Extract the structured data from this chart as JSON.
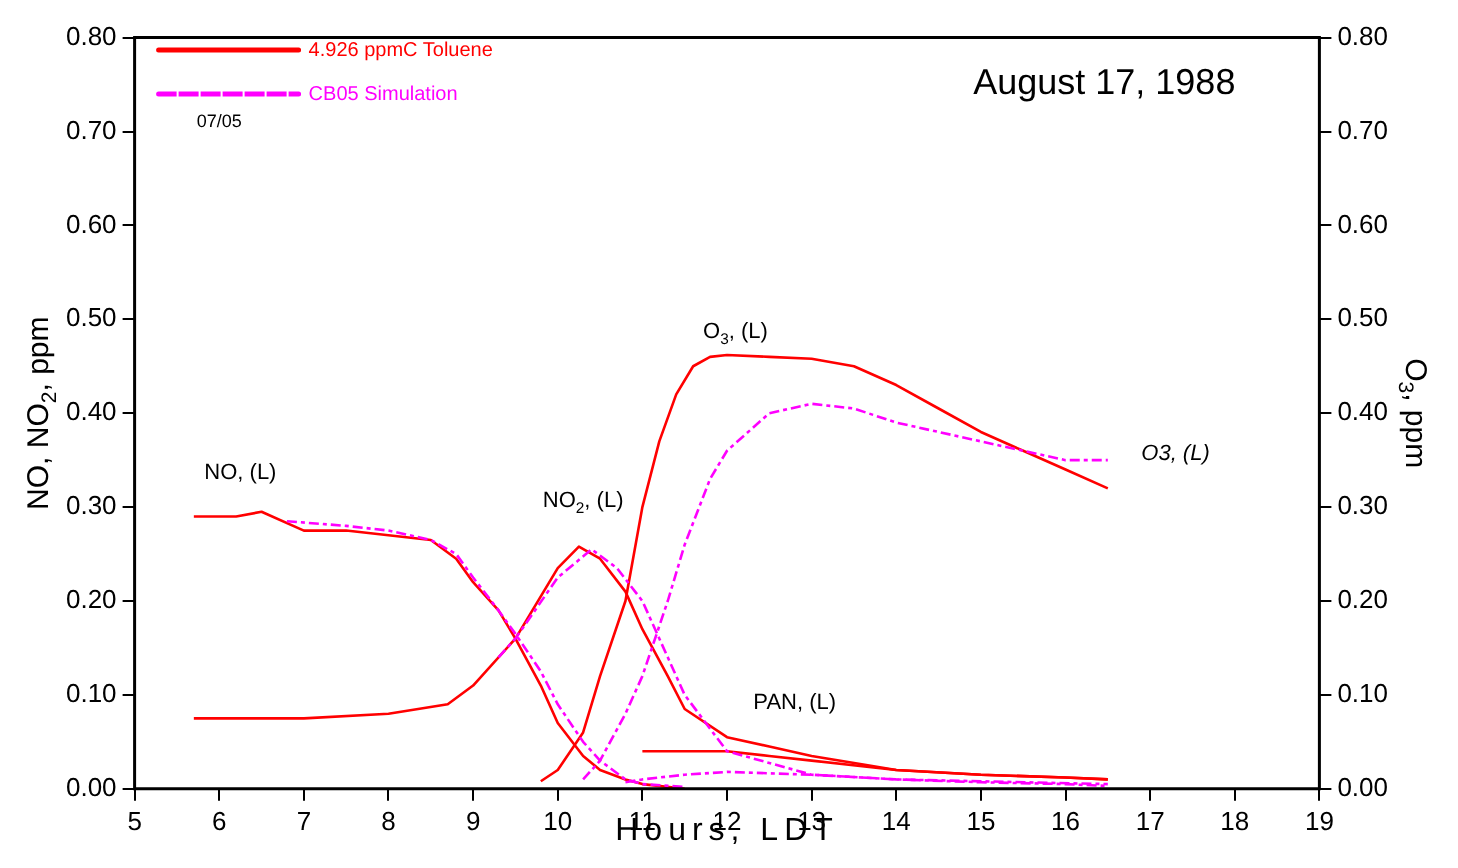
{
  "chart_data": {
    "type": "line",
    "title": "August 17, 1988",
    "xlabel": "Hours, LDT",
    "ylabel": "NO, NO$_{2}$, ppm",
    "y2label": "O$_{3}$, ppm",
    "xlim": [
      5,
      19
    ],
    "xticks": [
      5,
      6,
      7,
      8,
      9,
      10,
      11,
      12,
      13,
      14,
      15,
      16,
      17,
      18,
      19
    ],
    "ylim": [
      0,
      0.8
    ],
    "yticks": [
      {
        "value": 0,
        "label": "0.00"
      },
      {
        "value": 0.1,
        "label": "0.10"
      },
      {
        "value": 0.2,
        "label": "0.20"
      },
      {
        "value": 0.3,
        "label": "0.30"
      },
      {
        "value": 0.4,
        "label": "0.40"
      },
      {
        "value": 0.5,
        "label": "0.50"
      },
      {
        "value": 0.6,
        "label": "0.60"
      },
      {
        "value": 0.7,
        "label": "0.70"
      },
      {
        "value": 0.8,
        "label": "0.80"
      }
    ],
    "y2lim": [
      0,
      0.8
    ],
    "y2ticks": [
      {
        "value": 0,
        "label": "0.00"
      },
      {
        "value": 0.1,
        "label": "0.10"
      },
      {
        "value": 0.2,
        "label": "0.20"
      },
      {
        "value": 0.3,
        "label": "0.30"
      },
      {
        "value": 0.4,
        "label": "0.40"
      },
      {
        "value": 0.5,
        "label": "0.50"
      },
      {
        "value": 0.6,
        "label": "0.60"
      },
      {
        "value": 0.7,
        "label": "0.70"
      },
      {
        "value": 0.8,
        "label": "0.80"
      }
    ],
    "grid": false,
    "legend": "top left",
    "marker": "none",
    "series": [
      {
        "name": "4.926 ppmC Toluene",
        "color": "#ff0000",
        "line_style": "solid",
        "x": [
          5.7,
          6.2,
          6.5,
          7,
          7.5,
          8,
          8.5,
          8.8,
          9,
          9.3,
          9.5,
          9.8,
          10,
          10.3,
          10.5,
          10.8,
          11,
          11.5
        ],
        "values": [
          0.29,
          0.29,
          0.295,
          0.275,
          0.275,
          0.27,
          0.265,
          0.245,
          0.22,
          0.19,
          0.16,
          0.11,
          0.07,
          0.035,
          0.02,
          0.01,
          0.005,
          0
        ]
      },
      {
        "name": "CB05 Simulation",
        "color": "#ff00ff",
        "line_style": "dashed",
        "x": [
          6.8,
          7.5,
          8,
          8.5,
          8.8,
          9,
          9.3,
          9.5,
          9.8,
          10,
          10.3,
          10.5,
          10.8,
          11,
          11.5
        ],
        "values": [
          0.285,
          0.28,
          0.275,
          0.265,
          0.25,
          0.225,
          0.19,
          0.165,
          0.125,
          0.09,
          0.05,
          0.03,
          0.01,
          0.005,
          0.002
        ]
      },
      {
        "color": "#ff0000",
        "line_style": "solid",
        "x": [
          5.7,
          6.5,
          7,
          8,
          8.7,
          9,
          9.5,
          10,
          10.25,
          10.5,
          10.8,
          11,
          11.3,
          11.5,
          12,
          12.5,
          13,
          14,
          15,
          16,
          16.5
        ],
        "values": [
          0.075,
          0.075,
          0.075,
          0.08,
          0.09,
          0.11,
          0.16,
          0.235,
          0.258,
          0.245,
          0.21,
          0.17,
          0.12,
          0.085,
          0.055,
          0.045,
          0.035,
          0.02,
          0.015,
          0.012,
          0.01
        ]
      },
      {
        "color": "#ff00ff",
        "line_style": "dashed",
        "x": [
          9.3,
          9.5,
          10,
          10.4,
          10.7,
          11,
          11.3,
          11.5,
          12,
          13,
          14,
          15,
          16.5
        ],
        "values": [
          0.14,
          0.16,
          0.225,
          0.255,
          0.235,
          0.2,
          0.14,
          0.1,
          0.04,
          0.015,
          0.01,
          0.008,
          0.005
        ]
      },
      {
        "color": "#ff0000",
        "line_style": "solid",
        "x": [
          9.8,
          10,
          10.3,
          10.5,
          10.8,
          11,
          11.2,
          11.4,
          11.6,
          11.8,
          12,
          12.5,
          13,
          13.5,
          14,
          14.5,
          15,
          15.5,
          16,
          16.5
        ],
        "values": [
          0.008,
          0.02,
          0.06,
          0.12,
          0.2,
          0.3,
          0.37,
          0.42,
          0.45,
          0.46,
          0.462,
          0.46,
          0.458,
          0.45,
          0.43,
          0.405,
          0.38,
          0.36,
          0.34,
          0.32
        ]
      },
      {
        "color": "#ff00ff",
        "line_style": "dashed",
        "x": [
          10.3,
          10.5,
          10.8,
          11,
          11.3,
          11.5,
          11.8,
          12,
          12.5,
          13,
          13.5,
          14,
          15,
          16,
          16.5
        ],
        "values": [
          0.01,
          0.03,
          0.08,
          0.12,
          0.2,
          0.26,
          0.33,
          0.36,
          0.4,
          0.41,
          0.405,
          0.39,
          0.37,
          0.35,
          0.35
        ]
      },
      {
        "color": "#ff0000",
        "line_style": "solid",
        "x": [
          11,
          12,
          12.5,
          13,
          14,
          15,
          16,
          16.5
        ],
        "values": [
          0.04,
          0.04,
          0.035,
          0.03,
          0.02,
          0.015,
          0.012,
          0.01
        ]
      },
      {
        "color": "#ff00ff",
        "line_style": "dashed",
        "x": [
          10.8,
          11,
          11.5,
          12,
          13,
          14,
          15,
          16,
          16.5
        ],
        "values": [
          0.007,
          0.01,
          0.015,
          0.018,
          0.015,
          0.01,
          0.007,
          0.005,
          0.003
        ]
      }
    ],
    "annotations": [
      "NO, (L)",
      "NO$_{2}$, (L)",
      "O$_{3}$, (L)",
      "PAN, (L)",
      "O3, (L)",
      "07/05"
    ]
  }
}
